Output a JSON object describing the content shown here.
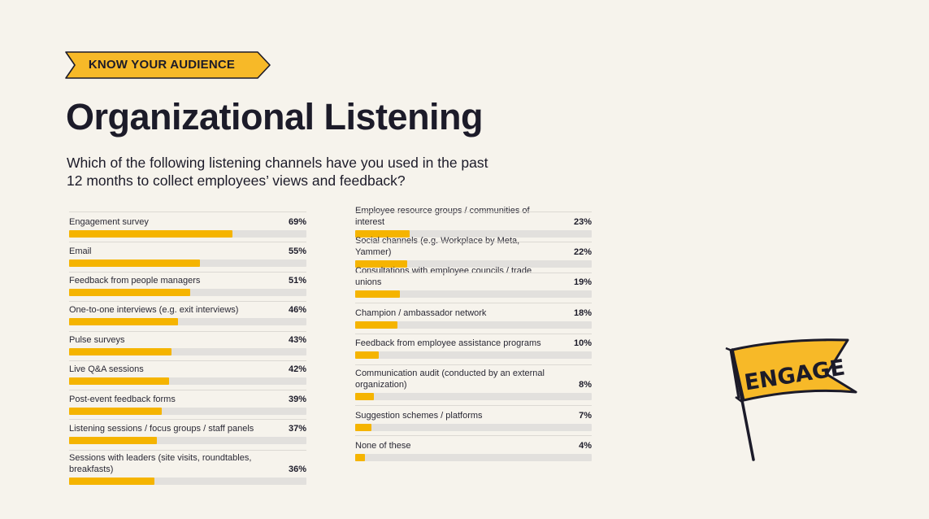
{
  "tag": {
    "label": "KNOW YOUR AUDIENCE",
    "color": "#f7b928"
  },
  "header": {
    "title": "Organizational Listening",
    "subtitle_line1": "Which of the following listening channels have you used in the past",
    "subtitle_line2": "12 months to collect employees’ views and feedback?"
  },
  "colors": {
    "bar": "#f5b400",
    "track": "#e2e0dd",
    "background": "#f6f3ec"
  },
  "chart_data": {
    "type": "bar",
    "orientation": "horizontal",
    "unit": "%",
    "xlim": [
      0,
      100
    ],
    "grid": false,
    "columns": [
      {
        "categories": [
          "Engagement survey",
          "Email",
          "Feedback from people managers",
          "One-to-one interviews (e.g. exit interviews)",
          "Pulse surveys",
          "Live Q&A sessions",
          "Post-event feedback forms",
          "Listening sessions / focus groups / staff panels",
          "Sessions with leaders (site visits, roundtables, breakfasts)"
        ],
        "values": [
          69,
          55,
          51,
          46,
          43,
          42,
          39,
          37,
          36
        ],
        "value_labels": [
          "69%",
          "55%",
          "51%",
          "46%",
          "43%",
          "42%",
          "39%",
          "37%",
          "36%"
        ]
      },
      {
        "categories": [
          "Employee resource groups / communities of interest",
          "Social channels (e.g. Workplace by Meta, Yammer)",
          "Consultations with employee councils / trade unions",
          "Champion / ambassador network",
          "Feedback from employee assistance programs",
          "Communication audit (conducted by an external organization)",
          "Suggestion schemes / platforms",
          "None of these"
        ],
        "values": [
          23,
          22,
          19,
          18,
          10,
          8,
          7,
          4
        ],
        "value_labels": [
          "23%",
          "22%",
          "19%",
          "18%",
          "10%",
          "8%",
          "7%",
          "4%"
        ]
      }
    ]
  },
  "flag": {
    "text": "ENGAGE",
    "icon": "flag-icon",
    "color": "#f7b928"
  }
}
